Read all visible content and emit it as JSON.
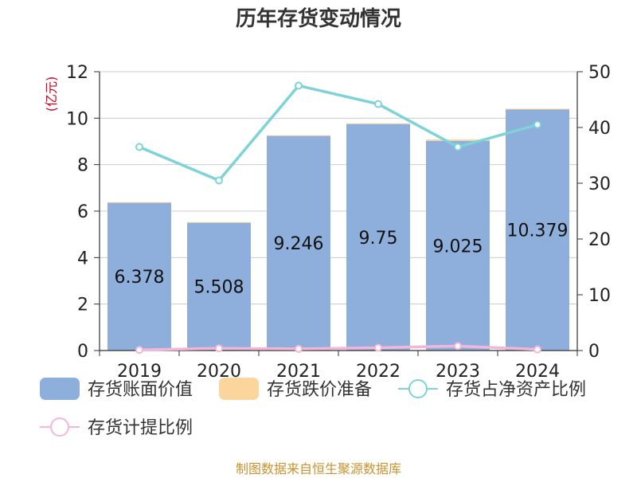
{
  "chart_data": {
    "type": "bar",
    "title": "历年存货变动情况",
    "categories": [
      "2019",
      "2020",
      "2021",
      "2022",
      "2023",
      "2024"
    ],
    "y_left": {
      "unit_label": "(亿元)",
      "range": [
        0,
        12
      ],
      "ticks": [
        "0",
        "2",
        "4",
        "6",
        "8",
        "10",
        "12"
      ]
    },
    "y_right": {
      "unit_label": "%",
      "range": [
        0,
        50
      ],
      "ticks": [
        "0",
        "10",
        "20",
        "30",
        "40",
        "50"
      ]
    },
    "series": [
      {
        "name": "存货账面价值",
        "kind": "bar",
        "axis": "left",
        "color": "#8eaedb",
        "values": [
          6.378,
          5.508,
          9.246,
          9.75,
          9.025,
          10.379
        ],
        "labels": [
          "6.378",
          "5.508",
          "9.246",
          "9.75",
          "9.025",
          "10.379"
        ]
      },
      {
        "name": "存货跌价准备",
        "kind": "bar-stacked",
        "axis": "left",
        "color": "#fcd59c",
        "values": [
          0.01,
          0.02,
          0.02,
          0.03,
          0.06,
          0.03
        ]
      },
      {
        "name": "存货占净资产比例",
        "kind": "line",
        "axis": "right",
        "color": "#7dd3d7",
        "values": [
          36.5,
          30.5,
          47.5,
          44.2,
          36.5,
          40.5
        ]
      },
      {
        "name": "存货计提比例",
        "kind": "line",
        "axis": "right",
        "color": "#f2b6d9",
        "values": [
          0.1,
          0.4,
          0.3,
          0.5,
          0.8,
          0.2
        ]
      }
    ],
    "grid": true,
    "legend_position": "bottom"
  },
  "source_text": "制图数据来自恒生聚源数据库"
}
